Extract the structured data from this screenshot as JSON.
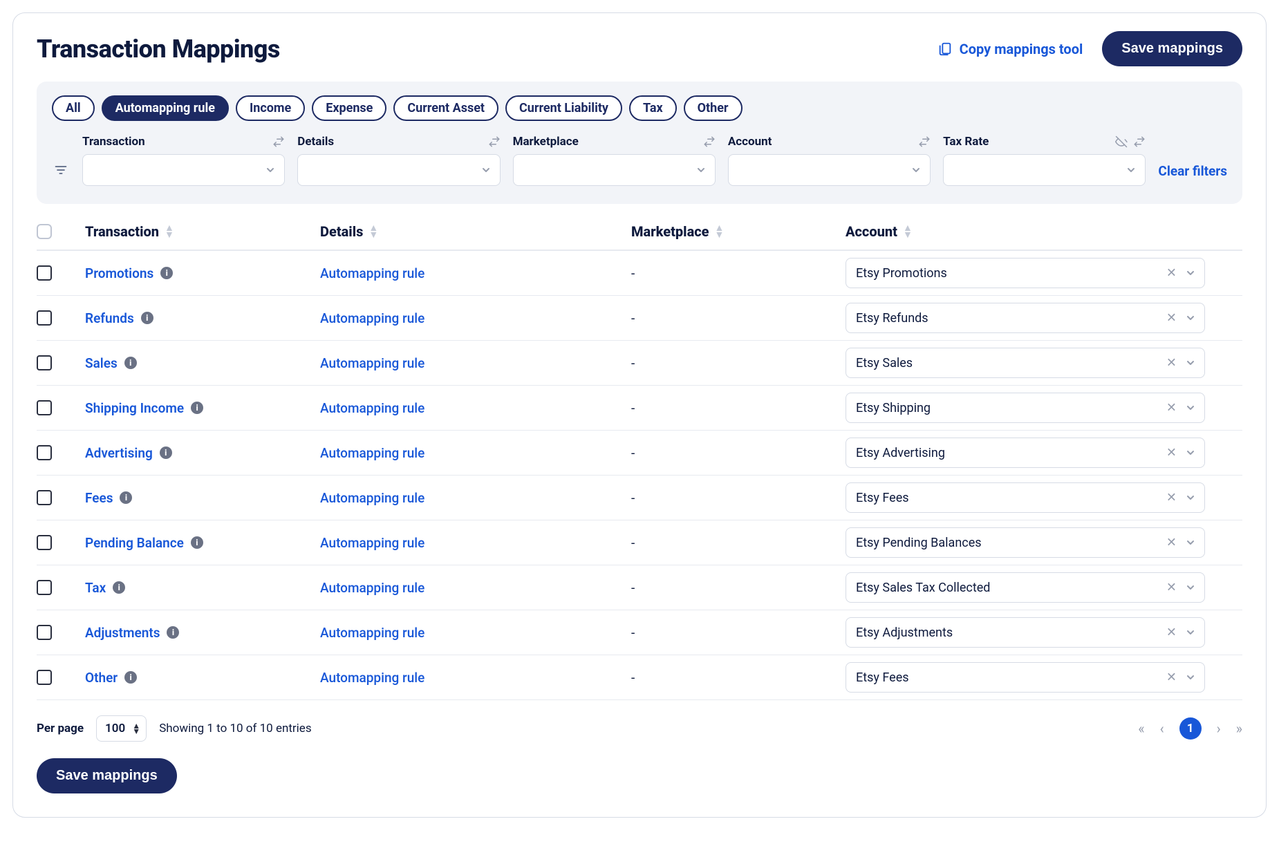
{
  "header": {
    "title": "Transaction Mappings",
    "copy_label": "Copy mappings tool",
    "save_label": "Save mappings"
  },
  "chips": [
    {
      "label": "All",
      "active": false
    },
    {
      "label": "Automapping rule",
      "active": true
    },
    {
      "label": "Income",
      "active": false
    },
    {
      "label": "Expense",
      "active": false
    },
    {
      "label": "Current Asset",
      "active": false
    },
    {
      "label": "Current Liability",
      "active": false
    },
    {
      "label": "Tax",
      "active": false
    },
    {
      "label": "Other",
      "active": false
    }
  ],
  "filters": {
    "columns": [
      {
        "label": "Transaction",
        "extra_icon": null
      },
      {
        "label": "Details",
        "extra_icon": null
      },
      {
        "label": "Marketplace",
        "extra_icon": null
      },
      {
        "label": "Account",
        "extra_icon": null
      },
      {
        "label": "Tax Rate",
        "extra_icon": "eye-off"
      }
    ],
    "clear_label": "Clear filters"
  },
  "table": {
    "headers": {
      "transaction": "Transaction",
      "details": "Details",
      "marketplace": "Marketplace",
      "account": "Account"
    },
    "rows": [
      {
        "transaction": "Promotions",
        "details": "Automapping rule",
        "marketplace": "-",
        "account": "Etsy Promotions"
      },
      {
        "transaction": "Refunds",
        "details": "Automapping rule",
        "marketplace": "-",
        "account": "Etsy Refunds"
      },
      {
        "transaction": "Sales",
        "details": "Automapping rule",
        "marketplace": "-",
        "account": "Etsy Sales"
      },
      {
        "transaction": "Shipping Income",
        "details": "Automapping rule",
        "marketplace": "-",
        "account": "Etsy Shipping"
      },
      {
        "transaction": "Advertising",
        "details": "Automapping rule",
        "marketplace": "-",
        "account": "Etsy Advertising"
      },
      {
        "transaction": "Fees",
        "details": "Automapping rule",
        "marketplace": "-",
        "account": "Etsy Fees"
      },
      {
        "transaction": "Pending Balance",
        "details": "Automapping rule",
        "marketplace": "-",
        "account": "Etsy Pending Balances"
      },
      {
        "transaction": "Tax",
        "details": "Automapping rule",
        "marketplace": "-",
        "account": "Etsy Sales Tax Collected"
      },
      {
        "transaction": "Adjustments",
        "details": "Automapping rule",
        "marketplace": "-",
        "account": "Etsy Adjustments"
      },
      {
        "transaction": "Other",
        "details": "Automapping rule",
        "marketplace": "-",
        "account": "Etsy Fees"
      }
    ]
  },
  "footer": {
    "per_page_label": "Per page",
    "per_page_value": "100",
    "entries_text": "Showing 1 to 10 of 10 entries",
    "current_page": "1",
    "save_label": "Save mappings"
  },
  "colors": {
    "navy": "#1d2a63",
    "blue": "#1857d8",
    "panel_bg": "#f2f4f8",
    "border": "#d6dbe5",
    "icon_gray": "#969dad"
  }
}
